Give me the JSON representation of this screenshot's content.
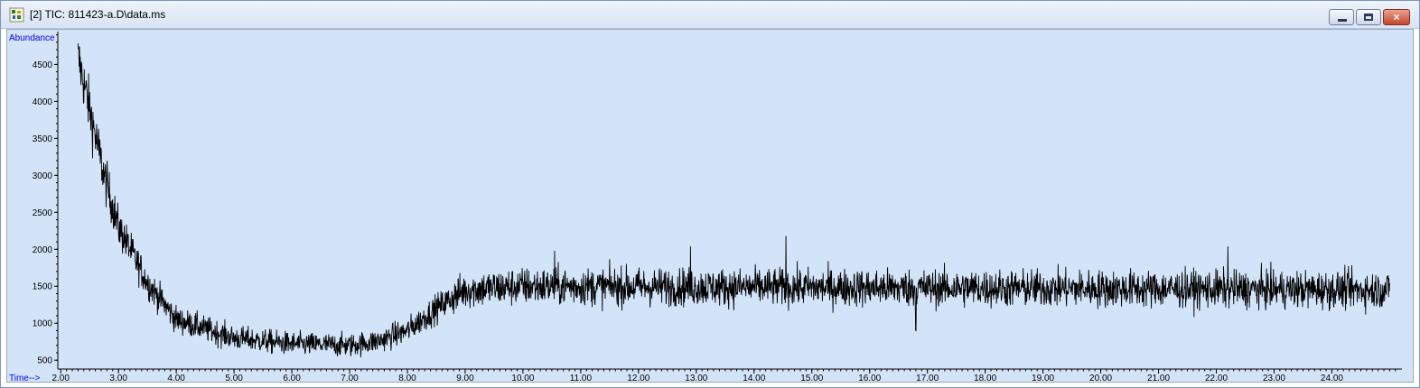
{
  "window": {
    "title": "[2] TIC: 811423-a.D\\data.ms",
    "buttons": {
      "minimize": "minimize",
      "restore": "restore",
      "close": "×"
    }
  },
  "colors": {
    "plot_background": "#d3e4f9",
    "trace": "#000000",
    "axis_title": "#0000ff"
  },
  "chart_data": {
    "type": "line",
    "title": "",
    "ylabel": "Abundance",
    "xlabel": "Time-->",
    "x_range": [
      1.95,
      25.15
    ],
    "y_range": [
      380,
      4920
    ],
    "x_ticks": [
      "2.00",
      "3.00",
      "4.00",
      "5.00",
      "6.00",
      "7.00",
      "8.00",
      "9.00",
      "10.00",
      "11.00",
      "12.00",
      "13.00",
      "14.00",
      "15.00",
      "16.00",
      "17.00",
      "18.00",
      "19.00",
      "20.00",
      "21.00",
      "22.00",
      "23.00",
      "24.00"
    ],
    "y_ticks": [
      "500",
      "1000",
      "1500",
      "2000",
      "2500",
      "3000",
      "3500",
      "4000",
      "4500"
    ],
    "baseline_profile": {
      "x": [
        2.3,
        2.5,
        2.75,
        3.0,
        3.5,
        4.0,
        5.0,
        6.0,
        7.0,
        7.5,
        8.0,
        8.5,
        9.0,
        10.0,
        25.0
      ],
      "y": [
        4600,
        3900,
        3000,
        2300,
        1550,
        1050,
        800,
        720,
        700,
        760,
        900,
        1200,
        1450,
        1500,
        1450
      ]
    },
    "noise_amplitude": [
      150,
      350
    ],
    "notable_peaks": [
      {
        "x": 14.55,
        "y": 2180
      },
      {
        "x": 12.9,
        "y": 2040
      },
      {
        "x": 22.2,
        "y": 2040
      },
      {
        "x": 10.55,
        "y": 1980
      },
      {
        "x": 16.8,
        "y": 900
      }
    ]
  }
}
